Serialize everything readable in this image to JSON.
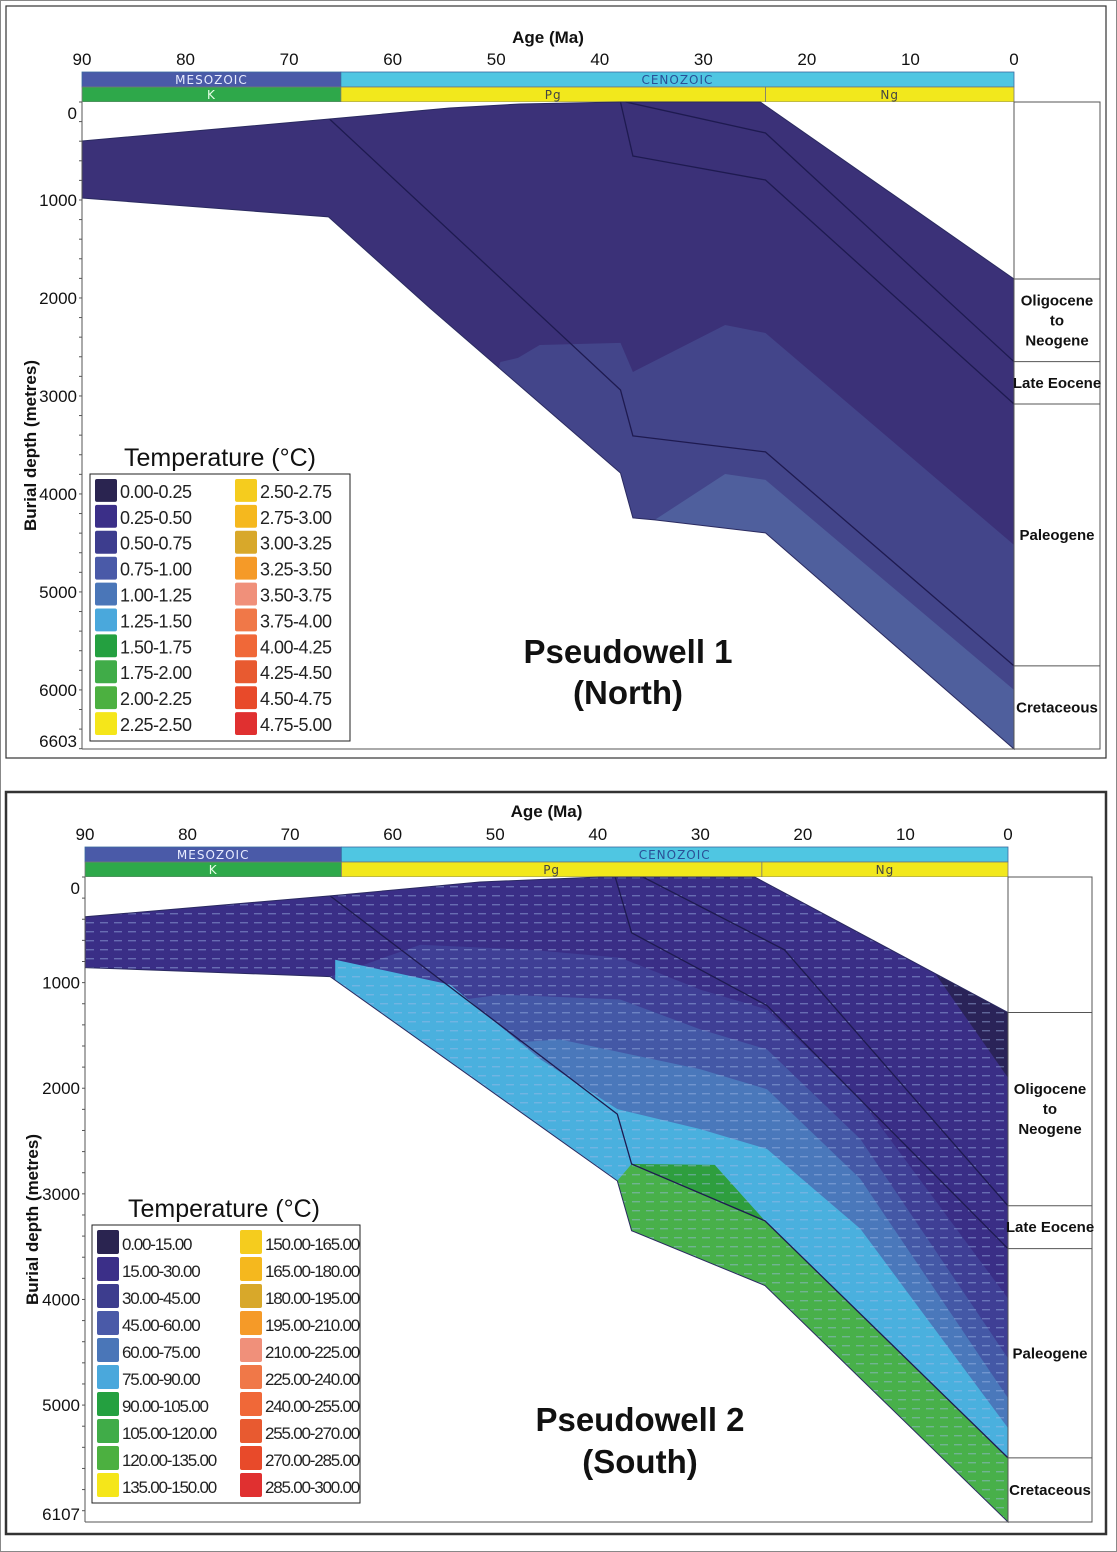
{
  "chart_data": [
    {
      "type": "area",
      "title": "Pseudowell 1",
      "subtitle": "(North)",
      "xlabel": "Age (Ma)",
      "ylabel": "Burial depth (metres)",
      "xlim": [
        90,
        0
      ],
      "ylim": [
        0,
        6603
      ],
      "x_ticks": [
        "90",
        "80",
        "70",
        "60",
        "50",
        "40",
        "30",
        "20",
        "10",
        "0"
      ],
      "y_ticks": [
        "0",
        "1000",
        "2000",
        "3000",
        "4000",
        "5000",
        "6000",
        "6603"
      ],
      "eras": [
        {
          "label": "MESOZOIC",
          "from": 90,
          "to": 65,
          "color": "#4a5aa8",
          "text_color": "#e8ecff"
        },
        {
          "label": "CENOZOIC",
          "from": 65,
          "to": 0,
          "color": "#4fc6e2",
          "text_color": "#2a4f96"
        }
      ],
      "periods": [
        {
          "label": "K",
          "from": 90,
          "to": 65,
          "color": "#2ea84a",
          "text_color": "#e8ffe8"
        },
        {
          "label": "Pg",
          "from": 65,
          "to": 24,
          "color": "#f2e81c",
          "text_color": "#444"
        },
        {
          "label": "Ng",
          "from": 24,
          "to": 0,
          "color": "#f2e81c",
          "text_color": "#444"
        }
      ],
      "formations": [
        {
          "lines": [
            "Oligocene",
            "to",
            "Neogene"
          ],
          "top": 1806,
          "base": 2650
        },
        {
          "lines": [
            "Late Eocene"
          ],
          "top": 2650,
          "base": 3082
        },
        {
          "lines": [
            "Paleogene"
          ],
          "top": 3082,
          "base": 5755
        },
        {
          "lines": [
            "Cretaceous"
          ],
          "top": 5755,
          "base": 6603
        }
      ],
      "legend": {
        "title": "Temperature (°C)",
        "items": [
          {
            "label": "0.00-0.25",
            "color": "#2a2450"
          },
          {
            "label": "0.25-0.50",
            "color": "#3b2f88"
          },
          {
            "label": "0.50-0.75",
            "color": "#3d3d8e"
          },
          {
            "label": "0.75-1.00",
            "color": "#4a5aa8"
          },
          {
            "label": "1.00-1.25",
            "color": "#4a76b8"
          },
          {
            "label": "1.25-1.50",
            "color": "#4aa8dc"
          },
          {
            "label": "1.50-1.75",
            "color": "#24a040"
          },
          {
            "label": "1.75-2.00",
            "color": "#40ac48"
          },
          {
            "label": "2.00-2.25",
            "color": "#4cb040"
          },
          {
            "label": "2.25-2.50",
            "color": "#f5e61a"
          },
          {
            "label": "2.50-2.75",
            "color": "#f5cc1e"
          },
          {
            "label": "2.75-3.00",
            "color": "#f5b81e"
          },
          {
            "label": "3.00-3.25",
            "color": "#d8a82a"
          },
          {
            "label": "3.25-3.50",
            "color": "#f59a28"
          },
          {
            "label": "3.50-3.75",
            "color": "#f0907a"
          },
          {
            "label": "3.75-4.00",
            "color": "#f07848"
          },
          {
            "label": "4.00-4.25",
            "color": "#f06838"
          },
          {
            "label": "4.25-4.50",
            "color": "#e85a30"
          },
          {
            "label": "4.50-4.75",
            "color": "#e84a2a"
          },
          {
            "label": "4.75-5.00",
            "color": "#e03030"
          }
        ]
      },
      "envelope": {
        "top": [
          [
            90,
            398
          ],
          [
            66.1,
            173
          ],
          [
            54.5,
            61
          ],
          [
            47.7,
            20
          ],
          [
            38,
            0
          ],
          [
            24.5,
            0
          ],
          [
            0,
            1806
          ]
        ],
        "bottom": [
          [
            90,
            980
          ],
          [
            66.2,
            1173
          ],
          [
            56.4,
            2102
          ],
          [
            38,
            3786
          ],
          [
            36.8,
            4245
          ],
          [
            34.7,
            4265
          ],
          [
            24,
            4398
          ],
          [
            0,
            6603
          ]
        ],
        "base_color": "#3b3178"
      },
      "horizons": [
        [
          [
            66.1,
            173
          ],
          [
            38,
            2939
          ],
          [
            36.8,
            3408
          ],
          [
            24,
            3571
          ],
          [
            0,
            5755
          ]
        ],
        [
          [
            38,
            0
          ],
          [
            36.8,
            551
          ],
          [
            24,
            796
          ],
          [
            0,
            3082
          ]
        ],
        [
          [
            37.5,
            0
          ],
          [
            24,
            316
          ],
          [
            0,
            2650
          ]
        ]
      ],
      "temperature_zones": [
        {
          "range": "0.50-0.75",
          "color": "#43458a",
          "boundary": [
            [
              50,
              2800
            ],
            [
              49.6,
              2653
            ],
            [
              47.9,
              2612
            ],
            [
              45.8,
              2480
            ],
            [
              38,
              2459
            ],
            [
              36.8,
              2755
            ],
            [
              27.9,
              2276
            ],
            [
              24,
              2357
            ],
            [
              0,
              4520
            ]
          ]
        },
        {
          "range": "0.75-1.00",
          "color": "#4f5f9d",
          "boundary": [
            [
              35,
              4400
            ],
            [
              34.7,
              4265
            ],
            [
              27.9,
              3796
            ],
            [
              24,
              3857
            ],
            [
              0,
              6000
            ]
          ]
        }
      ]
    },
    {
      "type": "area",
      "title": "Pseudowell 2",
      "subtitle": "(South)",
      "xlabel": "Age (Ma)",
      "ylabel": "Burial depth (metres)",
      "xlim": [
        90,
        0
      ],
      "ylim": [
        0,
        6107
      ],
      "x_ticks": [
        "90",
        "80",
        "70",
        "60",
        "50",
        "40",
        "30",
        "20",
        "10",
        "0"
      ],
      "y_ticks": [
        "0",
        "1000",
        "2000",
        "3000",
        "4000",
        "5000",
        "6107"
      ],
      "eras": [
        {
          "label": "MESOZOIC",
          "from": 90,
          "to": 65,
          "color": "#4a5aa8",
          "text_color": "#e8ecff"
        },
        {
          "label": "CENOZOIC",
          "from": 65,
          "to": 0,
          "color": "#4fc6e2",
          "text_color": "#2a4f96"
        }
      ],
      "periods": [
        {
          "label": "K",
          "from": 90,
          "to": 65,
          "color": "#2ea84a",
          "text_color": "#e8ffe8"
        },
        {
          "label": "Pg",
          "from": 65,
          "to": 24,
          "color": "#f2e81c",
          "text_color": "#444"
        },
        {
          "label": "Ng",
          "from": 24,
          "to": 0,
          "color": "#f2e81c",
          "text_color": "#444"
        }
      ],
      "formations": [
        {
          "lines": [
            "Oligocene",
            "to",
            "Neogene"
          ],
          "top": 1283,
          "base": 3113
        },
        {
          "lines": [
            "Late Eocene"
          ],
          "top": 3113,
          "base": 3519
        },
        {
          "lines": [
            "Paleogene"
          ],
          "top": 3519,
          "base": 5500
        },
        {
          "lines": [
            "Cretaceous"
          ],
          "top": 5500,
          "base": 6107
        }
      ],
      "legend": {
        "title": "Temperature (°C)",
        "items": [
          {
            "label": "0.00-15.00",
            "color": "#2a2450"
          },
          {
            "label": "15.00-30.00",
            "color": "#3b2f88"
          },
          {
            "label": "30.00-45.00",
            "color": "#3d3d8e"
          },
          {
            "label": "45.00-60.00",
            "color": "#4a5aa8"
          },
          {
            "label": "60.00-75.00",
            "color": "#4a76b8"
          },
          {
            "label": "75.00-90.00",
            "color": "#4aa8dc"
          },
          {
            "label": "90.00-105.00",
            "color": "#24a040"
          },
          {
            "label": "105.00-120.00",
            "color": "#40ac48"
          },
          {
            "label": "120.00-135.00",
            "color": "#4cb040"
          },
          {
            "label": "135.00-150.00",
            "color": "#f5e61a"
          },
          {
            "label": "150.00-165.00",
            "color": "#f5cc1e"
          },
          {
            "label": "165.00-180.00",
            "color": "#f5b81e"
          },
          {
            "label": "180.00-195.00",
            "color": "#d8a82a"
          },
          {
            "label": "195.00-210.00",
            "color": "#f59a28"
          },
          {
            "label": "210.00-225.00",
            "color": "#f0907a"
          },
          {
            "label": "225.00-240.00",
            "color": "#f07848"
          },
          {
            "label": "240.00-255.00",
            "color": "#f06838"
          },
          {
            "label": "255.00-270.00",
            "color": "#e85a30"
          },
          {
            "label": "270.00-285.00",
            "color": "#e84a2a"
          },
          {
            "label": "285.00-300.00",
            "color": "#e03030"
          }
        ]
      },
      "envelope": {
        "top": [
          [
            90,
            377
          ],
          [
            66.1,
            179
          ],
          [
            51.5,
            47
          ],
          [
            39.8,
            0
          ],
          [
            24.7,
            0
          ],
          [
            0,
            1283
          ]
        ],
        "bottom": [
          [
            90,
            858
          ],
          [
            66.1,
            943
          ],
          [
            38.1,
            2877
          ],
          [
            36.7,
            3349
          ],
          [
            23.7,
            3868
          ],
          [
            0,
            6107
          ]
        ],
        "base_color": "#3a2e86"
      },
      "horizons": [
        [
          [
            66.1,
            179
          ],
          [
            38.1,
            2245
          ],
          [
            36.7,
            2717
          ],
          [
            23.7,
            3255
          ],
          [
            0,
            5500
          ]
        ],
        [
          [
            38.3,
            0
          ],
          [
            36.7,
            528
          ],
          [
            29.3,
            915
          ],
          [
            23.5,
            1217
          ],
          [
            0,
            3519
          ]
        ],
        [
          [
            35.6,
            0
          ],
          [
            21.8,
            689
          ],
          [
            0,
            3113
          ]
        ]
      ],
      "temperature_zones": [
        {
          "range": "30.00-45.00",
          "color": "#3f3f95",
          "boundary": [
            [
              66.1,
              943
            ],
            [
              57.3,
              642
            ],
            [
              46.6,
              689
            ],
            [
              37.8,
              764
            ],
            [
              30,
              1066
            ],
            [
              23.5,
              1255
            ],
            [
              14.4,
              2104
            ],
            [
              0,
              3991
            ]
          ]
        },
        {
          "range": "45.00-60.00",
          "color": "#4458a6",
          "boundary": [
            [
              60.3,
              1255
            ],
            [
              49.5,
              1113
            ],
            [
              37.8,
              1160
            ],
            [
              30,
              1443
            ],
            [
              23.5,
              1632
            ],
            [
              14.4,
              2481
            ],
            [
              0,
              4557
            ]
          ]
        },
        {
          "range": "60.00-75.00",
          "color": "#4a78bb",
          "boundary": [
            [
              57.3,
              1632
            ],
            [
              43.7,
              1538
            ],
            [
              30,
              1821
            ],
            [
              23.5,
              2009
            ],
            [
              14.4,
              2858
            ],
            [
              0,
              4934
            ]
          ]
        },
        {
          "range": "75.00-90.00",
          "color": "#4ab0de",
          "boundary": [
            [
              65.6,
              783
            ],
            [
              54.4,
              1019
            ],
            [
              45.6,
              1726
            ],
            [
              38.1,
              2198
            ],
            [
              30,
              2387
            ],
            [
              23.5,
              2575
            ],
            [
              14.4,
              3330
            ],
            [
              0,
              5217
            ]
          ]
        },
        {
          "range": "105.00-120.00",
          "color": "#48b04a",
          "polygon": [
            [
              38.1,
              2877
            ],
            [
              36.7,
              2717
            ],
            [
              23.7,
              3255
            ],
            [
              0,
              5500
            ],
            [
              0,
              6107
            ],
            [
              23.7,
              3868
            ],
            [
              36.7,
              3349
            ]
          ]
        },
        {
          "range": "90.00-105.00",
          "color": "#2e9e3e",
          "polygon": [
            [
              36.7,
              2717
            ],
            [
              28.6,
              2726
            ],
            [
              23.7,
              3255
            ]
          ]
        },
        {
          "range": "0.00-15.00",
          "color": "#2a2358",
          "polygon": [
            [
              9,
              650
            ],
            [
              0,
              1283
            ],
            [
              0,
              1900
            ]
          ]
        }
      ],
      "hatched": true
    }
  ]
}
